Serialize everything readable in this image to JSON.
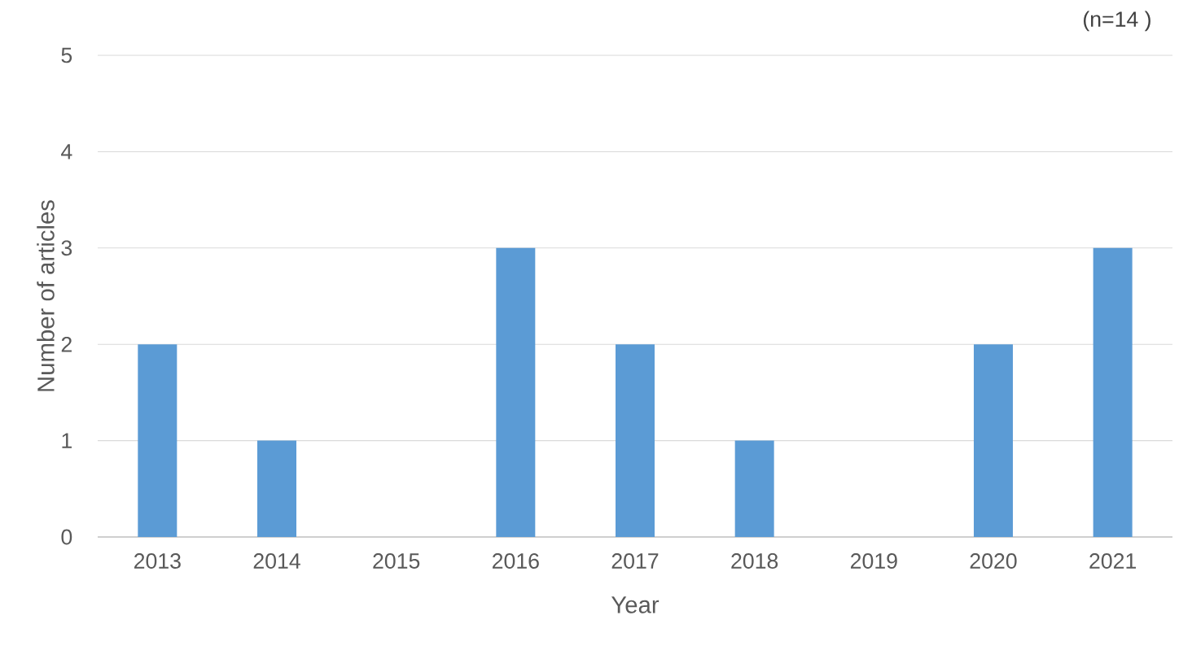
{
  "chart_data": {
    "type": "bar",
    "xlabel": "Year",
    "ylabel": "Number of articles",
    "categories": [
      "2013",
      "2014",
      "2015",
      "2016",
      "2017",
      "2018",
      "2019",
      "2020",
      "2021"
    ],
    "values": [
      2,
      1,
      0,
      3,
      2,
      1,
      0,
      2,
      3
    ],
    "color": "#5b9bd5",
    "ylim": [
      0,
      5
    ],
    "yticks": [
      0,
      1,
      2,
      3,
      4,
      5
    ],
    "grid": "y",
    "annotations": [
      "(n=14 )"
    ]
  }
}
